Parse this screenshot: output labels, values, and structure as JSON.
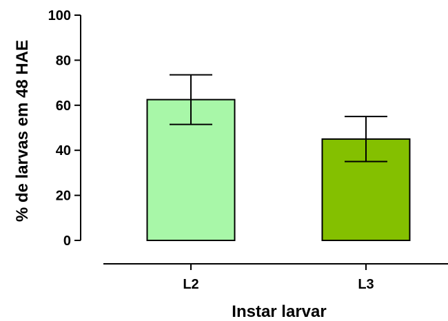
{
  "chart_data": {
    "type": "bar",
    "categories": [
      "L2",
      "L3"
    ],
    "series": [
      {
        "values": [
          62.5,
          45
        ],
        "errors_upper": [
          73.5,
          55
        ],
        "errors_lower": [
          51.5,
          35
        ],
        "colors": [
          "#a8f7a8",
          "#84c000"
        ]
      }
    ],
    "xlabel": "Instar larvar",
    "ylabel": "% de larvas em 48 HAE",
    "ylim": [
      0,
      100
    ],
    "yticks": [
      0,
      20,
      40,
      60,
      80,
      100
    ],
    "grid": false,
    "legend": "none"
  }
}
